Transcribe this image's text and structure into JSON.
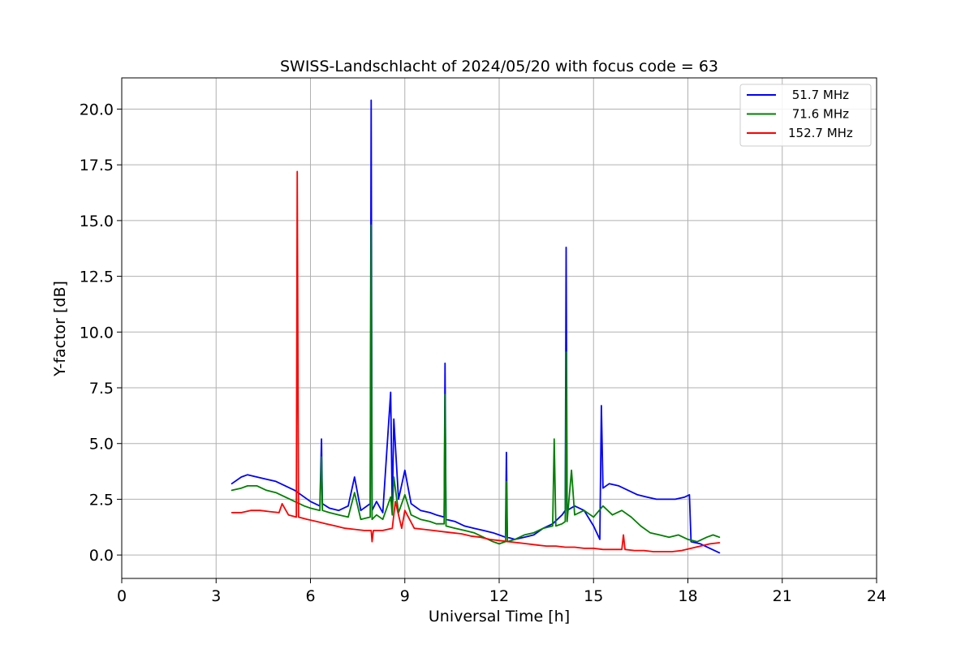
{
  "chart_data": {
    "type": "line",
    "title": "SWISS-Landschlacht of 2024/05/20 with focus code = 63",
    "xlabel": "Universal Time [h]",
    "ylabel": "Y-factor [dB]",
    "xlim": [
      0,
      24
    ],
    "ylim": [
      -1.05,
      21.4
    ],
    "xticks": [
      0,
      3,
      6,
      9,
      12,
      15,
      18,
      21,
      24
    ],
    "xtick_labels": [
      "0",
      "3",
      "6",
      "9",
      "12",
      "15",
      "18",
      "21",
      "24"
    ],
    "yticks": [
      0,
      2.5,
      5,
      7.5,
      10,
      12.5,
      15,
      17.5,
      20
    ],
    "ytick_labels": [
      "0.0",
      "2.5",
      "5.0",
      "7.5",
      "10.0",
      "12.5",
      "15.0",
      "17.5",
      "20.0"
    ],
    "grid": true,
    "legend_position": "top-right",
    "series": [
      {
        "name": " 51.7 MHz",
        "color": "#0000ff",
        "x": [
          3.5,
          3.8,
          4.0,
          4.3,
          4.6,
          4.9,
          5.2,
          5.5,
          5.8,
          6.0,
          6.3,
          6.35,
          6.38,
          6.6,
          6.9,
          7.2,
          7.4,
          7.6,
          7.9,
          7.93,
          7.96,
          8.1,
          8.3,
          8.55,
          8.6,
          8.65,
          8.8,
          9.0,
          9.2,
          9.5,
          9.8,
          10.0,
          10.25,
          10.28,
          10.31,
          10.6,
          10.9,
          11.2,
          11.5,
          11.8,
          12.0,
          12.2,
          12.23,
          12.26,
          12.5,
          12.8,
          13.1,
          13.4,
          13.7,
          14.0,
          14.1,
          14.13,
          14.16,
          14.4,
          14.7,
          15.0,
          15.2,
          15.25,
          15.3,
          15.5,
          15.8,
          16.1,
          16.4,
          16.7,
          17.0,
          17.3,
          17.6,
          17.9,
          18.05,
          18.1,
          18.4,
          18.7,
          19.0
        ],
        "y": [
          3.2,
          3.5,
          3.6,
          3.5,
          3.4,
          3.3,
          3.1,
          2.9,
          2.6,
          2.4,
          2.2,
          5.2,
          2.3,
          2.1,
          2.0,
          2.2,
          3.5,
          2.0,
          2.3,
          20.4,
          2.0,
          2.4,
          1.9,
          7.3,
          2.0,
          6.1,
          2.5,
          3.8,
          2.3,
          2.0,
          1.9,
          1.8,
          1.7,
          8.6,
          1.6,
          1.5,
          1.3,
          1.2,
          1.1,
          1.0,
          0.9,
          0.8,
          4.6,
          0.8,
          0.7,
          0.8,
          0.9,
          1.2,
          1.4,
          1.8,
          2.0,
          13.8,
          2.0,
          2.2,
          2.0,
          1.3,
          0.7,
          6.7,
          3.0,
          3.2,
          3.1,
          2.9,
          2.7,
          2.6,
          2.5,
          2.5,
          2.5,
          2.6,
          2.7,
          0.6,
          0.5,
          0.3,
          0.1
        ]
      },
      {
        "name": " 71.6 MHz",
        "color": "#008000",
        "x": [
          3.5,
          3.8,
          4.0,
          4.3,
          4.6,
          4.9,
          5.2,
          5.5,
          5.8,
          6.0,
          6.3,
          6.35,
          6.38,
          6.6,
          6.9,
          7.2,
          7.4,
          7.6,
          7.9,
          7.93,
          7.96,
          8.1,
          8.3,
          8.55,
          8.6,
          8.65,
          8.8,
          9.0,
          9.2,
          9.5,
          9.8,
          10.0,
          10.25,
          10.28,
          10.31,
          10.6,
          10.9,
          11.2,
          11.5,
          11.8,
          12.0,
          12.2,
          12.23,
          12.26,
          12.5,
          12.8,
          13.1,
          13.4,
          13.7,
          13.75,
          13.8,
          14.0,
          14.1,
          14.13,
          14.16,
          14.3,
          14.4,
          14.7,
          15.0,
          15.3,
          15.6,
          15.9,
          16.2,
          16.5,
          16.8,
          17.1,
          17.4,
          17.7,
          18.0,
          18.3,
          18.6,
          18.8,
          19.0
        ],
        "y": [
          2.9,
          3.0,
          3.1,
          3.1,
          2.9,
          2.8,
          2.6,
          2.4,
          2.2,
          2.1,
          2.0,
          4.4,
          2.0,
          1.9,
          1.8,
          1.7,
          2.8,
          1.6,
          1.7,
          14.8,
          1.6,
          1.8,
          1.6,
          2.6,
          1.8,
          3.5,
          1.9,
          2.7,
          1.8,
          1.6,
          1.5,
          1.4,
          1.4,
          7.2,
          1.3,
          1.2,
          1.1,
          1.0,
          0.8,
          0.6,
          0.5,
          0.6,
          3.3,
          0.6,
          0.7,
          0.9,
          1.0,
          1.2,
          1.3,
          5.2,
          1.3,
          1.4,
          1.5,
          9.1,
          1.5,
          3.8,
          1.8,
          2.0,
          1.7,
          2.2,
          1.8,
          2.0,
          1.7,
          1.3,
          1.0,
          0.9,
          0.8,
          0.9,
          0.7,
          0.6,
          0.8,
          0.9,
          0.8
        ]
      },
      {
        "name": "152.7 MHz",
        "color": "#ff0000",
        "x": [
          3.5,
          3.8,
          4.1,
          4.4,
          4.7,
          5.0,
          5.1,
          5.3,
          5.55,
          5.58,
          5.62,
          5.9,
          6.2,
          6.5,
          6.8,
          7.1,
          7.4,
          7.7,
          7.93,
          7.96,
          8.0,
          8.3,
          8.6,
          8.7,
          8.9,
          9.0,
          9.3,
          9.6,
          9.9,
          10.2,
          10.5,
          10.8,
          11.1,
          11.4,
          11.7,
          12.0,
          12.3,
          12.6,
          12.9,
          13.2,
          13.5,
          13.8,
          14.1,
          14.4,
          14.7,
          15.0,
          15.3,
          15.6,
          15.9,
          15.95,
          16.0,
          16.3,
          16.6,
          16.9,
          17.2,
          17.5,
          17.8,
          18.1,
          18.4,
          18.7,
          19.0
        ],
        "y": [
          1.9,
          1.9,
          2.0,
          2.0,
          1.95,
          1.9,
          2.3,
          1.8,
          1.7,
          17.2,
          1.7,
          1.6,
          1.5,
          1.4,
          1.3,
          1.2,
          1.15,
          1.1,
          1.1,
          0.6,
          1.1,
          1.1,
          1.2,
          2.4,
          1.2,
          2.0,
          1.2,
          1.15,
          1.1,
          1.05,
          1.0,
          0.95,
          0.85,
          0.8,
          0.7,
          0.65,
          0.6,
          0.55,
          0.5,
          0.45,
          0.4,
          0.4,
          0.35,
          0.35,
          0.3,
          0.3,
          0.25,
          0.25,
          0.25,
          0.9,
          0.25,
          0.2,
          0.2,
          0.15,
          0.15,
          0.15,
          0.2,
          0.3,
          0.4,
          0.5,
          0.55
        ]
      }
    ]
  }
}
